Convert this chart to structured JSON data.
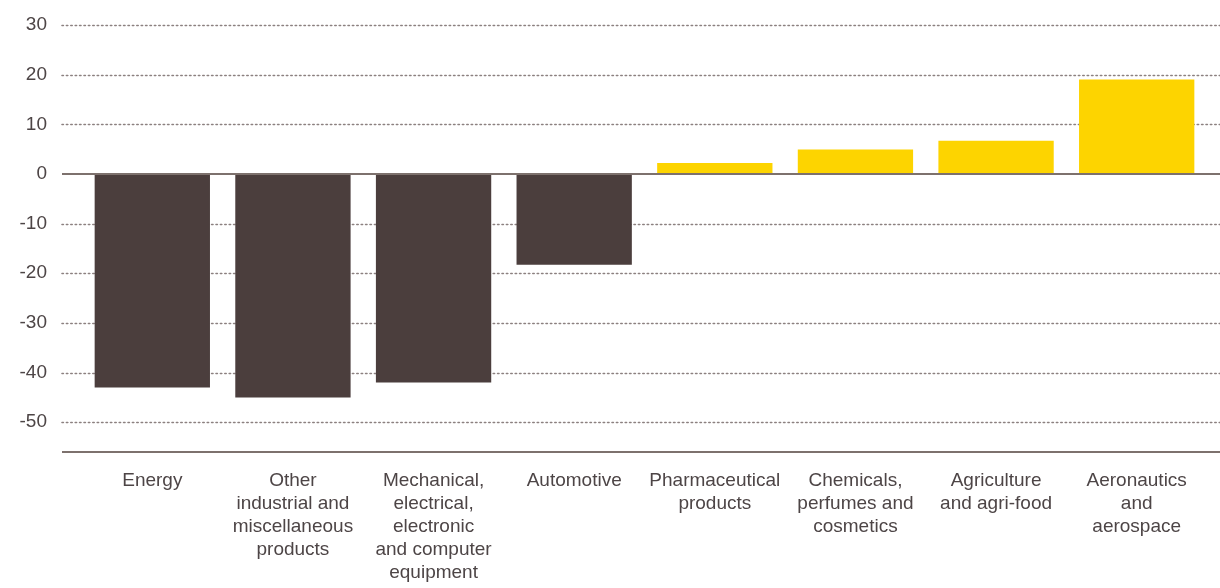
{
  "chart_data": {
    "type": "bar",
    "categories": [
      "Energy",
      "Other\nindustrial and\nmiscellaneous\nproducts",
      "Mechanical,\nelectrical,\nelectronic\nand computer\nequipment",
      "Automotive",
      "Pharmaceutical\nproducts",
      "Chemicals,\nperfumes and\ncosmetics",
      "Agriculture\nand agri-food",
      "Aeronautics\nand\naerospace"
    ],
    "values": [
      -43,
      -45,
      -42,
      -18.3,
      2.2,
      4.9,
      6.7,
      19
    ],
    "colors": [
      "#4b3e3d",
      "#4b3e3d",
      "#4b3e3d",
      "#4b3e3d",
      "#fdd400",
      "#fdd400",
      "#fdd400",
      "#fdd400"
    ],
    "ylim": [
      -56,
      30
    ],
    "yticks": [
      -50,
      -40,
      -30,
      -20,
      -10,
      0,
      10,
      20,
      30
    ],
    "grid": "y"
  }
}
